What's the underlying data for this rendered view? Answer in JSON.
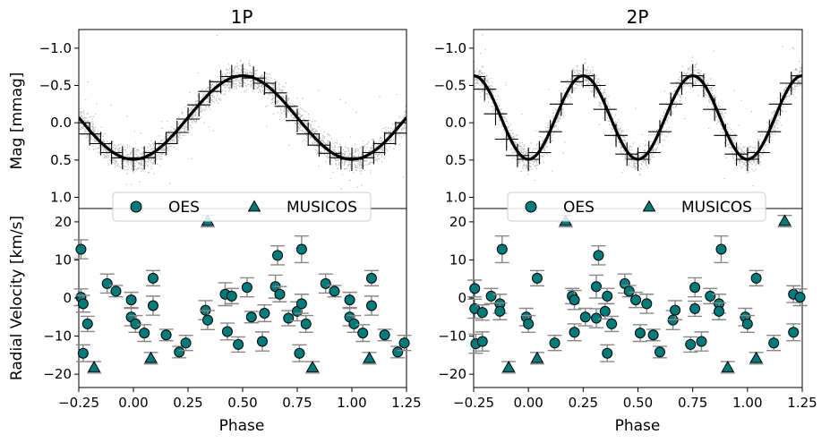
{
  "chart_data": [
    {
      "type": "scatter",
      "title": "1P",
      "xlabel": "Phase",
      "xlim": [
        -0.25,
        1.25
      ],
      "xticks": [
        -0.25,
        0.0,
        0.25,
        0.5,
        0.75,
        1.0,
        1.25
      ],
      "xtick_labels": [
        "−0.25",
        "0.00",
        "0.25",
        "0.50",
        "0.75",
        "1.00",
        "1.25"
      ],
      "top_panel": {
        "ylabel": "Mag [mmag]",
        "ylim": [
          1.15,
          -1.25
        ],
        "inverted_y": true,
        "yticks": [
          -1.0,
          -0.5,
          0.0,
          0.5,
          1.0
        ],
        "ytick_labels": [
          "−1.0",
          "−0.5",
          "0.0",
          "0.5",
          "1.0"
        ],
        "scatter_color": "#bbbbbb",
        "model": {
          "color": "#000000",
          "cycles_per_phase": 1,
          "mean": -0.07,
          "amplitude": 0.56
        },
        "binned_points": [
          {
            "x": -0.25,
            "y": 0.0
          },
          {
            "x": -0.2,
            "y": 0.15
          },
          {
            "x": -0.15,
            "y": 0.28
          },
          {
            "x": -0.1,
            "y": 0.4
          },
          {
            "x": -0.05,
            "y": 0.47
          },
          {
            "x": 0.0,
            "y": 0.49
          },
          {
            "x": 0.05,
            "y": 0.47
          },
          {
            "x": 0.1,
            "y": 0.4
          },
          {
            "x": 0.15,
            "y": 0.28
          },
          {
            "x": 0.2,
            "y": 0.13
          },
          {
            "x": 0.25,
            "y": -0.05
          },
          {
            "x": 0.3,
            "y": -0.24
          },
          {
            "x": 0.35,
            "y": -0.42
          },
          {
            "x": 0.4,
            "y": -0.55
          },
          {
            "x": 0.45,
            "y": -0.62
          },
          {
            "x": 0.5,
            "y": -0.63
          },
          {
            "x": 0.55,
            "y": -0.6
          },
          {
            "x": 0.6,
            "y": -0.53
          },
          {
            "x": 0.65,
            "y": -0.4
          },
          {
            "x": 0.7,
            "y": -0.22
          },
          {
            "x": 0.75,
            "y": -0.03
          },
          {
            "x": 0.8,
            "y": 0.15
          },
          {
            "x": 0.85,
            "y": 0.3
          },
          {
            "x": 0.9,
            "y": 0.41
          },
          {
            "x": 0.95,
            "y": 0.47
          },
          {
            "x": 1.0,
            "y": 0.49
          },
          {
            "x": 1.05,
            "y": 0.47
          },
          {
            "x": 1.1,
            "y": 0.4
          },
          {
            "x": 1.15,
            "y": 0.28
          },
          {
            "x": 1.2,
            "y": 0.14
          },
          {
            "x": 1.25,
            "y": 0.0
          }
        ]
      },
      "bottom_panel": {
        "ylabel": "Radial Velocity [km/s]",
        "ylim": [
          -23.5,
          23.5
        ],
        "yticks": [
          -20,
          -10,
          0,
          10,
          20
        ],
        "ytick_labels": [
          "−20",
          "−10",
          "0",
          "10",
          "20"
        ],
        "series": [
          {
            "name": "OES",
            "marker": "circle",
            "color": "#007b7b",
            "points": [
              {
                "x": -0.24,
                "y": 12.8,
                "err": 2.5
              },
              {
                "x": -0.24,
                "y": 0.2,
                "err": 2.2
              },
              {
                "x": -0.23,
                "y": -1.5,
                "err": 2.2
              },
              {
                "x": -0.23,
                "y": -14.5,
                "err": 2.2
              },
              {
                "x": -0.21,
                "y": -6.8,
                "err": 2.0
              },
              {
                "x": -0.12,
                "y": 3.8,
                "err": 2.5
              },
              {
                "x": -0.08,
                "y": 1.8,
                "err": 1.5
              },
              {
                "x": -0.01,
                "y": -0.5,
                "err": 2.0
              },
              {
                "x": -0.01,
                "y": -5.0,
                "err": 2.3
              },
              {
                "x": 0.01,
                "y": -6.8,
                "err": 2.2
              },
              {
                "x": 0.05,
                "y": -9.2,
                "err": 2.2
              },
              {
                "x": 0.09,
                "y": 5.2,
                "err": 2.0
              },
              {
                "x": 0.09,
                "y": -2.0,
                "err": 2.5
              },
              {
                "x": 0.15,
                "y": -9.7,
                "err": 1.5
              },
              {
                "x": 0.21,
                "y": -14.2,
                "err": 1.5
              },
              {
                "x": 0.24,
                "y": -11.8,
                "err": 2.0
              },
              {
                "x": 0.33,
                "y": -3.2,
                "err": 2.5
              },
              {
                "x": 0.34,
                "y": -5.8,
                "err": 2.5
              },
              {
                "x": 0.42,
                "y": 1.0,
                "err": 3.0
              },
              {
                "x": 0.43,
                "y": -8.8,
                "err": 2.2
              },
              {
                "x": 0.45,
                "y": 0.5,
                "err": 2.0
              },
              {
                "x": 0.48,
                "y": -12.2,
                "err": 2.0
              },
              {
                "x": 0.52,
                "y": 2.8,
                "err": 2.5
              },
              {
                "x": 0.54,
                "y": -5.0,
                "err": 1.5
              },
              {
                "x": 0.59,
                "y": -11.4,
                "err": 2.5
              },
              {
                "x": 0.6,
                "y": -4.0,
                "err": 2.2
              },
              {
                "x": 0.65,
                "y": 3.0,
                "err": 3.0
              },
              {
                "x": 0.66,
                "y": 11.2,
                "err": 2.5
              },
              {
                "x": 0.67,
                "y": 1.0,
                "err": 2.0
              },
              {
                "x": 0.71,
                "y": -5.3,
                "err": 2.0
              },
              {
                "x": 0.75,
                "y": -3.5,
                "err": 2.5
              },
              {
                "x": 0.76,
                "y": -14.5,
                "err": 2.2
              },
              {
                "x": 0.77,
                "y": 12.8,
                "err": 3.5
              },
              {
                "x": 0.77,
                "y": -1.5,
                "err": 2.5
              },
              {
                "x": 0.79,
                "y": -6.8,
                "err": 2.2
              },
              {
                "x": 0.88,
                "y": 3.8,
                "err": 2.5
              },
              {
                "x": 0.92,
                "y": 1.8,
                "err": 1.5
              },
              {
                "x": 0.99,
                "y": -0.5,
                "err": 2.0
              },
              {
                "x": 0.99,
                "y": -5.0,
                "err": 2.3
              },
              {
                "x": 1.01,
                "y": -6.8,
                "err": 2.2
              },
              {
                "x": 1.05,
                "y": -9.2,
                "err": 2.2
              },
              {
                "x": 1.09,
                "y": 5.2,
                "err": 2.0
              },
              {
                "x": 1.09,
                "y": -2.0,
                "err": 2.5
              },
              {
                "x": 1.15,
                "y": -9.7,
                "err": 1.5
              },
              {
                "x": 1.21,
                "y": -14.2,
                "err": 1.5
              },
              {
                "x": 1.24,
                "y": -11.8,
                "err": 2.0
              }
            ]
          },
          {
            "name": "MUSICOS",
            "marker": "triangle",
            "color": "#007b7b",
            "points": [
              {
                "x": -0.18,
                "y": -18.2,
                "err": 1.5
              },
              {
                "x": 0.08,
                "y": -15.8,
                "err": 1.5
              },
              {
                "x": 0.34,
                "y": 20.2,
                "err": 1.5
              },
              {
                "x": 0.82,
                "y": -18.2,
                "err": 1.5
              },
              {
                "x": 1.08,
                "y": -15.8,
                "err": 1.5
              }
            ]
          }
        ]
      },
      "legend": {
        "placement": "top-center",
        "entries": [
          "OES",
          "MUSICOS"
        ]
      }
    },
    {
      "type": "scatter",
      "title": "2P",
      "xlabel": "Phase",
      "xlim": [
        -0.25,
        1.25
      ],
      "xticks": [
        -0.25,
        0.0,
        0.25,
        0.5,
        0.75,
        1.0,
        1.25
      ],
      "xtick_labels": [
        "−0.25",
        "0.00",
        "0.25",
        "0.50",
        "0.75",
        "1.00",
        "1.25"
      ],
      "top_panel": {
        "ylabel": "",
        "ylim": [
          1.15,
          -1.25
        ],
        "inverted_y": true,
        "yticks": [
          -1.0,
          -0.5,
          0.0,
          0.5,
          1.0
        ],
        "ytick_labels": [
          "−1.0",
          "−0.5",
          "0.0",
          "0.5",
          "1.0"
        ],
        "scatter_color": "#bbbbbb",
        "model": {
          "color": "#000000",
          "cycles_per_phase": 2,
          "mean": -0.07,
          "amplitude": 0.56
        },
        "binned_points": [
          {
            "x": -0.25,
            "y": -0.62
          },
          {
            "x": -0.2,
            "y": -0.45
          },
          {
            "x": -0.15,
            "y": -0.12
          },
          {
            "x": -0.1,
            "y": 0.22
          },
          {
            "x": -0.05,
            "y": 0.44
          },
          {
            "x": 0.0,
            "y": 0.49
          },
          {
            "x": 0.05,
            "y": 0.4
          },
          {
            "x": 0.1,
            "y": 0.12
          },
          {
            "x": 0.15,
            "y": -0.25
          },
          {
            "x": 0.2,
            "y": -0.55
          },
          {
            "x": 0.25,
            "y": -0.63
          },
          {
            "x": 0.3,
            "y": -0.5
          },
          {
            "x": 0.35,
            "y": -0.18
          },
          {
            "x": 0.4,
            "y": 0.17
          },
          {
            "x": 0.45,
            "y": 0.42
          },
          {
            "x": 0.5,
            "y": 0.49
          },
          {
            "x": 0.55,
            "y": 0.4
          },
          {
            "x": 0.6,
            "y": 0.12
          },
          {
            "x": 0.65,
            "y": -0.25
          },
          {
            "x": 0.7,
            "y": -0.53
          },
          {
            "x": 0.75,
            "y": -0.63
          },
          {
            "x": 0.8,
            "y": -0.5
          },
          {
            "x": 0.85,
            "y": -0.18
          },
          {
            "x": 0.9,
            "y": 0.17
          },
          {
            "x": 0.95,
            "y": 0.42
          },
          {
            "x": 1.0,
            "y": 0.49
          },
          {
            "x": 1.05,
            "y": 0.4
          },
          {
            "x": 1.1,
            "y": 0.12
          },
          {
            "x": 1.15,
            "y": -0.25
          },
          {
            "x": 1.2,
            "y": -0.53
          },
          {
            "x": 1.25,
            "y": -0.63
          }
        ]
      },
      "bottom_panel": {
        "ylabel": "",
        "ylim": [
          -23.5,
          23.5
        ],
        "yticks": [
          -20,
          -10,
          0,
          10,
          20
        ],
        "ytick_labels": [
          "−20",
          "−10",
          "0",
          "10",
          "20"
        ],
        "series": [
          {
            "name": "OES",
            "marker": "circle",
            "color": "#007b7b",
            "points": [
              {
                "x": -0.245,
                "y": 2.5,
                "err": 2.2
              },
              {
                "x": -0.245,
                "y": -2.8,
                "err": 2.5
              },
              {
                "x": -0.24,
                "y": -12.0,
                "err": 2.5
              },
              {
                "x": -0.21,
                "y": -3.8,
                "err": 2.0
              },
              {
                "x": -0.21,
                "y": -11.4,
                "err": 2.5
              },
              {
                "x": -0.17,
                "y": 0.5,
                "err": 2.0
              },
              {
                "x": -0.13,
                "y": -1.5,
                "err": 2.5
              },
              {
                "x": -0.13,
                "y": -3.5,
                "err": 2.2
              },
              {
                "x": -0.12,
                "y": 12.8,
                "err": 3.5
              },
              {
                "x": -0.01,
                "y": -5.0,
                "err": 2.3
              },
              {
                "x": 0.0,
                "y": -6.8,
                "err": 2.2
              },
              {
                "x": 0.04,
                "y": 5.2,
                "err": 2.0
              },
              {
                "x": 0.12,
                "y": -11.8,
                "err": 2.0
              },
              {
                "x": 0.2,
                "y": 0.5,
                "err": 2.0
              },
              {
                "x": 0.21,
                "y": -0.5,
                "err": 2.5
              },
              {
                "x": 0.21,
                "y": -9.0,
                "err": 2.2
              },
              {
                "x": 0.26,
                "y": -5.0,
                "err": 2.3
              },
              {
                "x": 0.31,
                "y": 3.0,
                "err": 3.0
              },
              {
                "x": 0.31,
                "y": -5.3,
                "err": 2.5
              },
              {
                "x": 0.32,
                "y": 11.2,
                "err": 2.5
              },
              {
                "x": 0.35,
                "y": -3.5,
                "err": 2.0
              },
              {
                "x": 0.36,
                "y": -14.5,
                "err": 2.2
              },
              {
                "x": 0.36,
                "y": 0.5,
                "err": 2.0
              },
              {
                "x": 0.38,
                "y": -6.8,
                "err": 2.0
              },
              {
                "x": 0.44,
                "y": 3.8,
                "err": 2.5
              },
              {
                "x": 0.46,
                "y": 1.8,
                "err": 1.5
              },
              {
                "x": 0.49,
                "y": -0.5,
                "err": 2.0
              },
              {
                "x": 0.51,
                "y": -9.2,
                "err": 2.2
              },
              {
                "x": 0.54,
                "y": -1.5,
                "err": 2.5
              },
              {
                "x": 0.57,
                "y": -9.7,
                "err": 1.5
              },
              {
                "x": 0.6,
                "y": -14.2,
                "err": 1.5
              },
              {
                "x": 0.66,
                "y": -5.8,
                "err": 2.5
              },
              {
                "x": 0.67,
                "y": -3.2,
                "err": 2.5
              },
              {
                "x": 0.74,
                "y": -12.2,
                "err": 2.0
              },
              {
                "x": 0.76,
                "y": 2.8,
                "err": 2.5
              },
              {
                "x": 0.76,
                "y": -2.8,
                "err": 2.0
              },
              {
                "x": 0.79,
                "y": -11.4,
                "err": 2.5
              },
              {
                "x": 0.83,
                "y": 0.5,
                "err": 2.0
              },
              {
                "x": 0.87,
                "y": -1.5,
                "err": 2.5
              },
              {
                "x": 0.87,
                "y": -3.5,
                "err": 2.2
              },
              {
                "x": 0.88,
                "y": 12.8,
                "err": 3.5
              },
              {
                "x": 0.99,
                "y": -5.0,
                "err": 2.3
              },
              {
                "x": 1.0,
                "y": -6.8,
                "err": 2.2
              },
              {
                "x": 1.04,
                "y": 5.2,
                "err": 2.0
              },
              {
                "x": 1.12,
                "y": -11.8,
                "err": 2.0
              },
              {
                "x": 1.21,
                "y": 1.0,
                "err": 2.2
              },
              {
                "x": 1.21,
                "y": -9.0,
                "err": 2.2
              },
              {
                "x": 1.24,
                "y": 0.2,
                "err": 2.2
              }
            ]
          },
          {
            "name": "MUSICOS",
            "marker": "triangle",
            "color": "#007b7b",
            "points": [
              {
                "x": -0.09,
                "y": -18.2,
                "err": 1.5
              },
              {
                "x": 0.04,
                "y": -15.8,
                "err": 1.5
              },
              {
                "x": 0.17,
                "y": 20.2,
                "err": 1.5
              },
              {
                "x": 0.91,
                "y": -18.2,
                "err": 1.5
              },
              {
                "x": 1.04,
                "y": -15.8,
                "err": 1.5
              },
              {
                "x": 1.17,
                "y": 20.2,
                "err": 1.5
              }
            ]
          }
        ]
      },
      "legend": {
        "placement": "top-center",
        "entries": [
          "OES",
          "MUSICOS"
        ]
      }
    }
  ]
}
